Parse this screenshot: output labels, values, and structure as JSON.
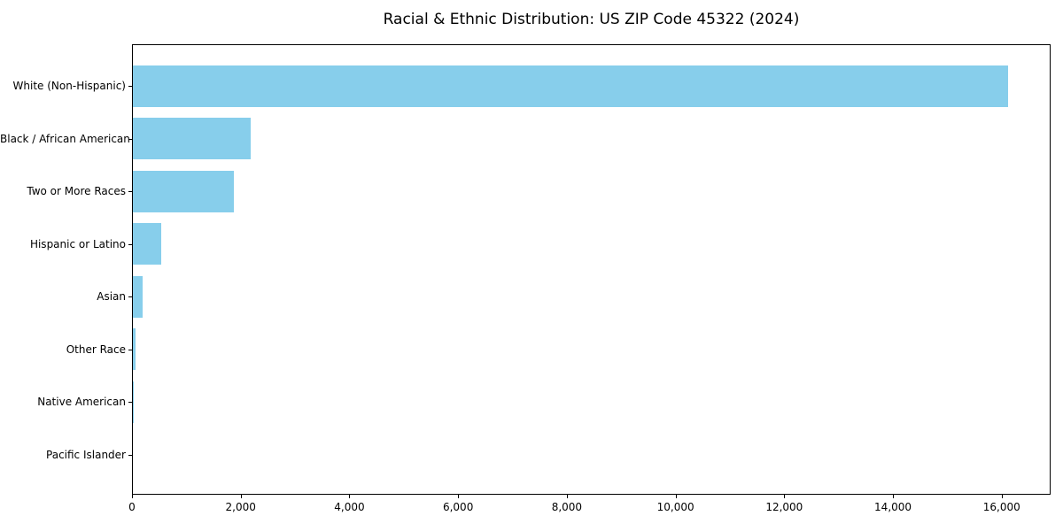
{
  "chart_data": {
    "type": "bar",
    "orientation": "horizontal",
    "title": "Racial & Ethnic Distribution: US ZIP Code 45322 (2024)",
    "categories": [
      "White (Non-Hispanic)",
      "Black / African American",
      "Two or More Races",
      "Hispanic or Latino",
      "Asian",
      "Other Race",
      "Native American",
      "Pacific Islander"
    ],
    "values": [
      16100,
      2160,
      1860,
      520,
      180,
      50,
      15,
      5
    ],
    "xlabel": "",
    "ylabel": "",
    "xlim": [
      0,
      16900
    ],
    "xticks": [
      0,
      2000,
      4000,
      6000,
      8000,
      10000,
      12000,
      14000,
      16000
    ],
    "xtick_labels": [
      "0",
      "2,000",
      "4,000",
      "6,000",
      "8,000",
      "10,000",
      "12,000",
      "14,000",
      "16,000"
    ],
    "bar_color": "#87CEEB",
    "axis_color": "#000000",
    "grid": false,
    "legend": null
  }
}
